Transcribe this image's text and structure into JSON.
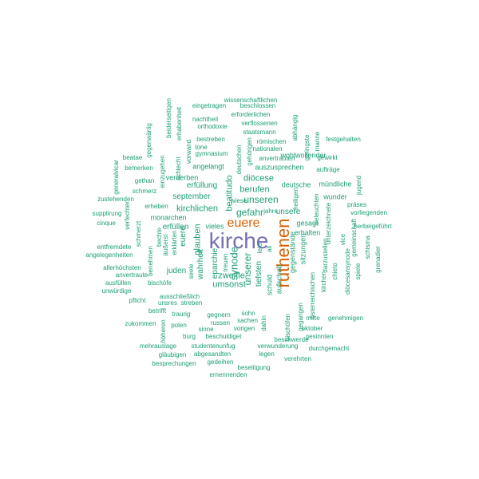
{
  "palette": {
    "primary": "#7570b3",
    "secondary": "#d95f02",
    "tertiary": "#1b9e77"
  },
  "words": [
    {
      "t": "kirche",
      "c": "primary"
    },
    {
      "t": "ruthenen",
      "c": "secondary"
    },
    {
      "t": "euere",
      "c": "secondary"
    },
    {
      "t": "unseren",
      "c": "tertiary"
    },
    {
      "t": "synode",
      "c": "tertiary"
    },
    {
      "t": "beatitudo",
      "c": "tertiary"
    },
    {
      "t": "gefahr",
      "c": "tertiary"
    },
    {
      "t": "unserer",
      "c": "tertiary"
    },
    {
      "t": "unsere",
      "c": "tertiary"
    },
    {
      "t": "berufen",
      "c": "tertiary"
    },
    {
      "t": "diöcese",
      "c": "tertiary"
    },
    {
      "t": "zweifle",
      "c": "tertiary"
    },
    {
      "t": "umsonst",
      "c": "tertiary"
    },
    {
      "t": "tiefsten",
      "c": "tertiary"
    },
    {
      "t": "kirchlichen",
      "c": "tertiary"
    },
    {
      "t": "september",
      "c": "tertiary"
    },
    {
      "t": "erfüllung",
      "c": "tertiary"
    },
    {
      "t": "glauben",
      "c": "tertiary"
    },
    {
      "t": "eparchie",
      "c": "tertiary"
    },
    {
      "t": "wahrheit",
      "c": "tertiary"
    },
    {
      "t": "juden",
      "c": "tertiary"
    },
    {
      "t": "euere",
      "c": "tertiary"
    },
    {
      "t": "erfüllen",
      "c": "tertiary"
    },
    {
      "t": "monarchen",
      "c": "tertiary"
    },
    {
      "t": "vieles",
      "c": "tertiary"
    },
    {
      "t": "gesagt",
      "c": "tertiary"
    },
    {
      "t": "schuld",
      "c": "tertiary"
    },
    {
      "t": "aufschub",
      "c": "tertiary"
    },
    {
      "t": "sitzungen",
      "c": "tertiary"
    },
    {
      "t": "gegenstände",
      "c": "tertiary"
    },
    {
      "t": "erhalten",
      "c": "tertiary"
    },
    {
      "t": "wohlwollender",
      "c": "tertiary"
    },
    {
      "t": "deutsche",
      "c": "tertiary"
    },
    {
      "t": "auszusprechen",
      "c": "tertiary"
    },
    {
      "t": "wunder",
      "c": "tertiary"
    },
    {
      "t": "mündliche",
      "c": "tertiary"
    },
    {
      "t": "aufträge",
      "c": "tertiary"
    },
    {
      "t": "gewirkt",
      "c": "tertiary"
    },
    {
      "t": "festgehalten",
      "c": "tertiary"
    },
    {
      "t": "manne",
      "c": "tertiary"
    },
    {
      "t": "geringste",
      "c": "tertiary"
    },
    {
      "t": "abhängig",
      "c": "tertiary"
    },
    {
      "t": "staatsmann",
      "c": "tertiary"
    },
    {
      "t": "römischen",
      "c": "tertiary"
    },
    {
      "t": "nationalen",
      "c": "tertiary"
    },
    {
      "t": "anvertrauten",
      "c": "tertiary"
    },
    {
      "t": "verflossenen",
      "c": "tertiary"
    },
    {
      "t": "erforderlichen",
      "c": "tertiary"
    },
    {
      "t": "beschlossen",
      "c": "tertiary"
    },
    {
      "t": "wissenschaftlichen",
      "c": "tertiary"
    },
    {
      "t": "eingetragen",
      "c": "tertiary"
    },
    {
      "t": "nachtheil",
      "c": "tertiary"
    },
    {
      "t": "orthodoxie",
      "c": "tertiary"
    },
    {
      "t": "bestreben",
      "c": "tertiary"
    },
    {
      "t": "tone",
      "c": "tertiary"
    },
    {
      "t": "gymnasium",
      "c": "tertiary"
    },
    {
      "t": "angelangt",
      "c": "tertiary"
    },
    {
      "t": "verderben",
      "c": "tertiary"
    },
    {
      "t": "deutschen",
      "c": "tertiary"
    },
    {
      "t": "gehörigen",
      "c": "tertiary"
    },
    {
      "t": "beiderseitigen",
      "c": "tertiary"
    },
    {
      "t": "erhabenheit",
      "c": "tertiary"
    },
    {
      "t": "gegenwärtig",
      "c": "tertiary"
    },
    {
      "t": "vorwand",
      "c": "tertiary"
    },
    {
      "t": "einzugehen",
      "c": "tertiary"
    },
    {
      "t": "schlecht",
      "c": "tertiary"
    },
    {
      "t": "beatae",
      "c": "tertiary"
    },
    {
      "t": "bemerken",
      "c": "tertiary"
    },
    {
      "t": "generalvicar",
      "c": "tertiary"
    },
    {
      "t": "gethan",
      "c": "tertiary"
    },
    {
      "t": "schmerz",
      "c": "tertiary"
    },
    {
      "t": "zustehenden",
      "c": "tertiary"
    },
    {
      "t": "erheben",
      "c": "tertiary"
    },
    {
      "t": "supplirung",
      "c": "tertiary"
    },
    {
      "t": "cinque",
      "c": "tertiary"
    },
    {
      "t": "verfechter",
      "c": "tertiary"
    },
    {
      "t": "schmerzt",
      "c": "tertiary"
    },
    {
      "t": "benehmen",
      "c": "tertiary"
    },
    {
      "t": "bechte",
      "c": "tertiary"
    },
    {
      "t": "äußerst",
      "c": "tertiary"
    },
    {
      "t": "erklärten",
      "c": "tertiary"
    },
    {
      "t": "entfremdete",
      "c": "tertiary"
    },
    {
      "t": "angelegenheiten",
      "c": "tertiary"
    },
    {
      "t": "allerhöchsten",
      "c": "tertiary"
    },
    {
      "t": "anvertraute",
      "c": "tertiary"
    },
    {
      "t": "ausfüllen",
      "c": "tertiary"
    },
    {
      "t": "bischöfe",
      "c": "tertiary"
    },
    {
      "t": "unwürdige",
      "c": "tertiary"
    },
    {
      "t": "pflicht",
      "c": "tertiary"
    },
    {
      "t": "ausschließlich",
      "c": "tertiary"
    },
    {
      "t": "unsres",
      "c": "tertiary"
    },
    {
      "t": "streben",
      "c": "tertiary"
    },
    {
      "t": "seele",
      "c": "tertiary"
    },
    {
      "t": "treuen",
      "c": "tertiary"
    },
    {
      "t": "betrifft",
      "c": "tertiary"
    },
    {
      "t": "traurig",
      "c": "tertiary"
    },
    {
      "t": "gegnern",
      "c": "tertiary"
    },
    {
      "t": "russen",
      "c": "tertiary"
    },
    {
      "t": "zukommen",
      "c": "tertiary"
    },
    {
      "t": "polen",
      "c": "tertiary"
    },
    {
      "t": "sinne",
      "c": "tertiary"
    },
    {
      "t": "höheren",
      "c": "tertiary"
    },
    {
      "t": "burg",
      "c": "tertiary"
    },
    {
      "t": "beschuldiget",
      "c": "tertiary"
    },
    {
      "t": "sohn",
      "c": "tertiary"
    },
    {
      "t": "sachen",
      "c": "tertiary"
    },
    {
      "t": "vorigen",
      "c": "tertiary"
    },
    {
      "t": "mehrauslage",
      "c": "tertiary"
    },
    {
      "t": "studentenunfug",
      "c": "tertiary"
    },
    {
      "t": "gläubigen",
      "c": "tertiary"
    },
    {
      "t": "abgesandten",
      "c": "tertiary"
    },
    {
      "t": "besprechungen",
      "c": "tertiary"
    },
    {
      "t": "gedeihen",
      "c": "tertiary"
    },
    {
      "t": "beseitigung",
      "c": "tertiary"
    },
    {
      "t": "ernennenden",
      "c": "tertiary"
    },
    {
      "t": "verwunderung",
      "c": "tertiary"
    },
    {
      "t": "legen",
      "c": "tertiary"
    },
    {
      "t": "verehrten",
      "c": "tertiary"
    },
    {
      "t": "durchgemacht",
      "c": "tertiary"
    },
    {
      "t": "gesinnten",
      "c": "tertiary"
    },
    {
      "t": "beschwerde",
      "c": "tertiary"
    },
    {
      "t": "oktober",
      "c": "tertiary"
    },
    {
      "t": "mitte",
      "c": "tertiary"
    },
    {
      "t": "genehmigen",
      "c": "tertiary"
    },
    {
      "t": "bischöfen",
      "c": "tertiary"
    },
    {
      "t": "gegangen",
      "c": "tertiary"
    },
    {
      "t": "österreichischen",
      "c": "tertiary"
    },
    {
      "t": "kirchen",
      "c": "tertiary"
    },
    {
      "t": "darzustellen",
      "c": "tertiary"
    },
    {
      "t": "unterzeichnete",
      "c": "tertiary"
    },
    {
      "t": "chieto",
      "c": "tertiary"
    },
    {
      "t": "diöcesansynode",
      "c": "tertiary"
    },
    {
      "t": "spiele",
      "c": "tertiary"
    },
    {
      "t": "vice",
      "c": "tertiary"
    },
    {
      "t": "gemeinschaft",
      "c": "tertiary"
    },
    {
      "t": "schisma",
      "c": "tertiary"
    },
    {
      "t": "grenadier",
      "c": "tertiary"
    },
    {
      "t": "herbeigeführt",
      "c": "tertiary"
    },
    {
      "t": "vorliegenden",
      "c": "tertiary"
    },
    {
      "t": "präses",
      "c": "tertiary"
    },
    {
      "t": "beleuchten",
      "c": "tertiary"
    },
    {
      "t": "jugend",
      "c": "tertiary"
    },
    {
      "t": "heiligen",
      "c": "tertiary"
    },
    {
      "t": "wiese",
      "c": "tertiary"
    },
    {
      "t": "jahre",
      "c": "tertiary"
    },
    {
      "t": "leid",
      "c": "tertiary"
    },
    {
      "t": "all",
      "c": "tertiary"
    },
    {
      "t": "dahin",
      "c": "tertiary"
    },
    {
      "t": "nation",
      "c": "tertiary"
    },
    {
      "t": "unsern",
      "c": "tertiary"
    }
  ]
}
